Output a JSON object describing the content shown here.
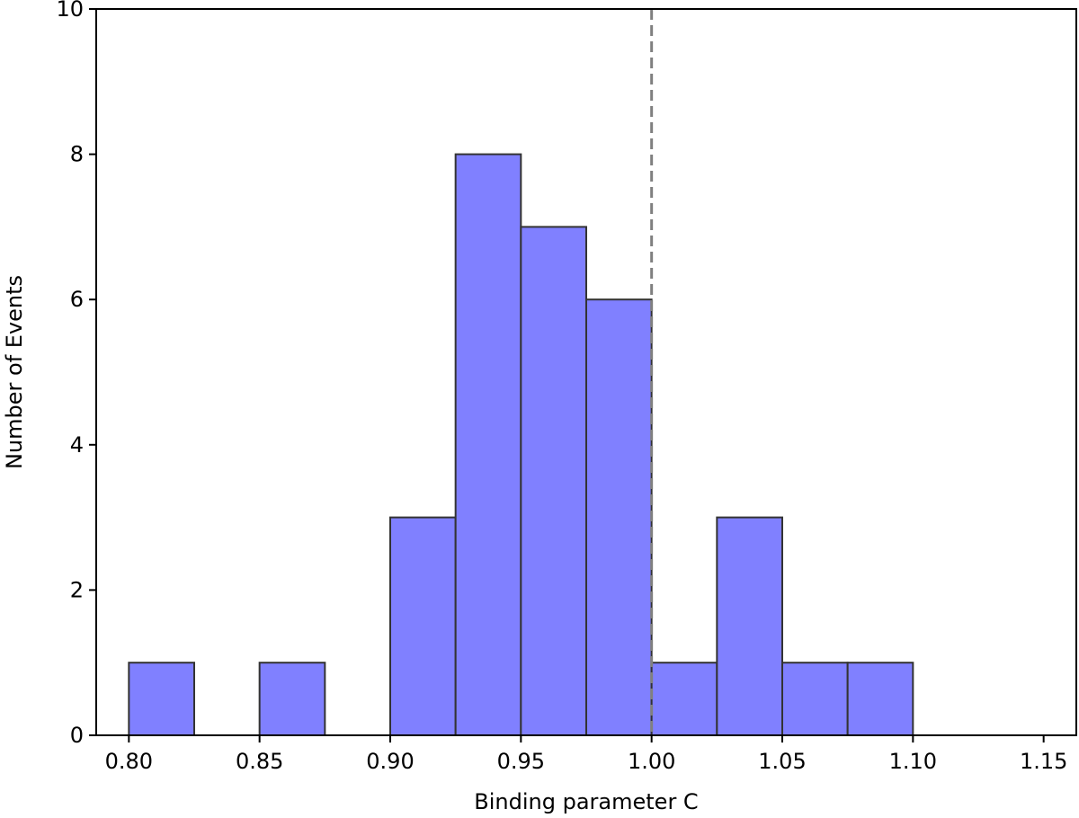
{
  "chart_data": {
    "type": "bar",
    "title": "",
    "xlabel": "Binding parameter C",
    "ylabel": "Number of Events",
    "xlim": [
      0.7875,
      1.1625
    ],
    "ylim": [
      0,
      10
    ],
    "grid": false,
    "bar_color": "#8080ff",
    "edge_color": "#333333",
    "bin_width": 0.025,
    "bins": [
      {
        "start": 0.8,
        "count": 1
      },
      {
        "start": 0.85,
        "count": 1
      },
      {
        "start": 0.9,
        "count": 3
      },
      {
        "start": 0.925,
        "count": 8
      },
      {
        "start": 0.95,
        "count": 7
      },
      {
        "start": 0.975,
        "count": 6
      },
      {
        "start": 1.0,
        "count": 1
      },
      {
        "start": 1.025,
        "count": 3
      },
      {
        "start": 1.05,
        "count": 1
      },
      {
        "start": 1.075,
        "count": 1
      }
    ],
    "reference_line": {
      "x": 1.0,
      "style": "dashed",
      "color": "#808080"
    },
    "x_ticks": [
      "0.80",
      "0.85",
      "0.90",
      "0.95",
      "1.00",
      "1.05",
      "1.10",
      "1.15"
    ],
    "y_ticks": [
      "0",
      "2",
      "4",
      "6",
      "8",
      "10"
    ]
  }
}
